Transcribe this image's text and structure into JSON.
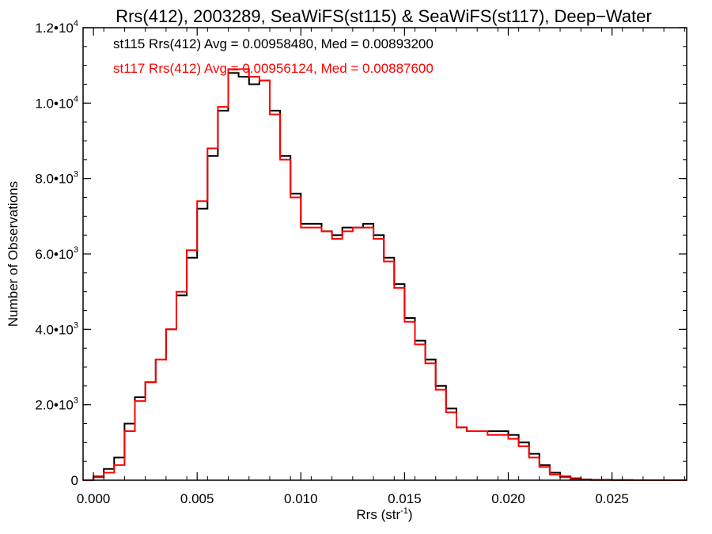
{
  "chart_data": {
    "type": "line",
    "title": "Rrs(412), 2003289, SeaWiFS(st115) & SeaWiFS(st117), Deep−Water",
    "xlabel": "Rrs (str",
    "xlabel_sup": "-1",
    "xlabel_suffix": ")",
    "ylabel": "Number of Observations",
    "xlim": [
      -0.0005,
      0.0286
    ],
    "ylim": [
      0,
      12000
    ],
    "x_ticks": [
      {
        "value": 0.0,
        "label": "0.000"
      },
      {
        "value": 0.005,
        "label": "0.005"
      },
      {
        "value": 0.01,
        "label": "0.010"
      },
      {
        "value": 0.015,
        "label": "0.015"
      },
      {
        "value": 0.02,
        "label": "0.020"
      },
      {
        "value": 0.025,
        "label": "0.025"
      }
    ],
    "y_ticks": [
      {
        "value": 0,
        "base": "0",
        "exp": ""
      },
      {
        "value": 2000,
        "base": "2.0•10",
        "exp": "3"
      },
      {
        "value": 4000,
        "base": "4.0•10",
        "exp": "3"
      },
      {
        "value": 6000,
        "base": "6.0•10",
        "exp": "3"
      },
      {
        "value": 8000,
        "base": "8.0•10",
        "exp": "3"
      },
      {
        "value": 10000,
        "base": "1.0•10",
        "exp": "4"
      },
      {
        "value": 12000,
        "base": "1.2•10",
        "exp": "4"
      }
    ],
    "annotations": [
      {
        "text": "st115 Rrs(412) Avg = 0.00958480, Med = 0.00893200",
        "color": "#000000"
      },
      {
        "text": "st117 Rrs(412) Avg = 0.00956124, Med = 0.00887600",
        "color": "#ff0000"
      }
    ],
    "series": [
      {
        "color": "#000000",
        "x": [
          -0.0005,
          0.0,
          0.0005,
          0.001,
          0.0015,
          0.002,
          0.0025,
          0.003,
          0.0035,
          0.004,
          0.0045,
          0.005,
          0.0055,
          0.006,
          0.0065,
          0.007,
          0.0075,
          0.008,
          0.0085,
          0.009,
          0.0095,
          0.01,
          0.0105,
          0.011,
          0.0115,
          0.012,
          0.0125,
          0.013,
          0.0135,
          0.014,
          0.0145,
          0.015,
          0.0155,
          0.016,
          0.0165,
          0.017,
          0.0175,
          0.018,
          0.0185,
          0.019,
          0.0195,
          0.02,
          0.0205,
          0.021,
          0.0215,
          0.022,
          0.0225,
          0.023,
          0.0235,
          0.024,
          0.025,
          0.026,
          0.027,
          0.0286
        ],
        "values": [
          0,
          100,
          300,
          600,
          1500,
          2200,
          2600,
          3200,
          4000,
          4900,
          5900,
          7200,
          8600,
          9800,
          10800,
          10700,
          10500,
          10600,
          9800,
          8600,
          7600,
          6800,
          6800,
          6600,
          6500,
          6700,
          6700,
          6800,
          6500,
          5900,
          5200,
          4300,
          3700,
          3200,
          2500,
          1900,
          1400,
          1300,
          1300,
          1300,
          1300,
          1200,
          1000,
          700,
          400,
          200,
          100,
          50,
          20,
          10,
          5,
          0,
          0,
          0
        ]
      },
      {
        "color": "#ff0000",
        "x": [
          -0.0005,
          0.0,
          0.0005,
          0.001,
          0.0015,
          0.002,
          0.0025,
          0.003,
          0.0035,
          0.004,
          0.0045,
          0.005,
          0.0055,
          0.006,
          0.0065,
          0.007,
          0.0075,
          0.008,
          0.0085,
          0.009,
          0.0095,
          0.01,
          0.0105,
          0.011,
          0.0115,
          0.012,
          0.0125,
          0.013,
          0.0135,
          0.014,
          0.0145,
          0.015,
          0.0155,
          0.016,
          0.0165,
          0.017,
          0.0175,
          0.018,
          0.0185,
          0.019,
          0.0195,
          0.02,
          0.0205,
          0.021,
          0.0215,
          0.022,
          0.0225,
          0.023,
          0.0235,
          0.024,
          0.025,
          0.026,
          0.027,
          0.0286
        ],
        "values": [
          0,
          80,
          200,
          400,
          1300,
          2100,
          2600,
          3200,
          4000,
          5000,
          6100,
          7400,
          8800,
          9900,
          10900,
          10900,
          10700,
          10600,
          9700,
          8500,
          7500,
          6700,
          6700,
          6600,
          6400,
          6600,
          6700,
          6700,
          6400,
          5800,
          5100,
          4200,
          3600,
          3100,
          2400,
          1800,
          1400,
          1300,
          1300,
          1200,
          1200,
          1100,
          900,
          600,
          350,
          150,
          80,
          30,
          10,
          5,
          0,
          0,
          0,
          0
        ]
      }
    ]
  }
}
